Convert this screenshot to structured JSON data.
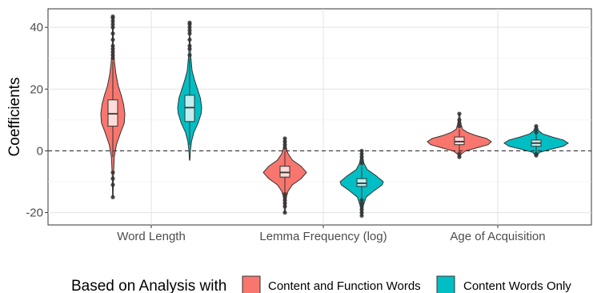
{
  "chart_data": {
    "type": "violin",
    "title": "",
    "xlabel": "",
    "ylabel": "Coefficients",
    "ylim": [
      -24,
      46
    ],
    "yticks": [
      -20,
      0,
      20,
      40
    ],
    "grid": true,
    "reference_line": {
      "y": 0,
      "style": "dashed"
    },
    "categories": [
      "Word Length",
      "Lemma Frequency (log)",
      "Age of Acquisition"
    ],
    "legend": {
      "title": "Based on Analysis with",
      "position": "bottom",
      "entries": [
        "Content and Function Words",
        "Content Words Only"
      ]
    },
    "series": [
      {
        "name": "Content and Function Words",
        "color": "#F8766D",
        "values": [
          {
            "category": "Word Length",
            "min": -15,
            "max": 43.5,
            "q1": 8,
            "median": 12,
            "q3": 16.5,
            "whisker_low": -2,
            "whisker_high": 29,
            "profile": [
              [
                -15,
                0.02
              ],
              [
                -8,
                0.05
              ],
              [
                -2,
                0.12
              ],
              [
                2,
                0.3
              ],
              [
                6,
                0.65
              ],
              [
                9,
                0.95
              ],
              [
                12,
                1
              ],
              [
                15,
                0.9
              ],
              [
                18,
                0.7
              ],
              [
                21,
                0.45
              ],
              [
                25,
                0.25
              ],
              [
                30,
                0.1
              ],
              [
                35,
                0.04
              ],
              [
                43.5,
                0.02
              ]
            ],
            "outliers_high": [
              30,
              31,
              32,
              33,
              34,
              36,
              38,
              40,
              41,
              42,
              43,
              43.5
            ],
            "outliers_low": [
              -7,
              -9,
              -11,
              -15
            ]
          },
          {
            "category": "Lemma Frequency (log)",
            "min": -20,
            "max": 4,
            "q1": -8.5,
            "median": -7,
            "q3": -5,
            "whisker_low": -13.5,
            "whisker_high": 0,
            "profile": [
              [
                -20,
                0.02
              ],
              [
                -15,
                0.06
              ],
              [
                -13,
                0.15
              ],
              [
                -11,
                0.35
              ],
              [
                -9,
                0.75
              ],
              [
                -7,
                1
              ],
              [
                -5,
                0.75
              ],
              [
                -3,
                0.35
              ],
              [
                -1,
                0.15
              ],
              [
                1,
                0.06
              ],
              [
                4,
                0.02
              ]
            ],
            "outliers_high": [
              1,
              2,
              3,
              4
            ],
            "outliers_low": [
              -14,
              -15,
              -16,
              -17,
              -18,
              -20
            ]
          },
          {
            "category": "Age of Acquisition",
            "min": -2,
            "max": 12,
            "q1": 2,
            "median": 3,
            "q3": 4.5,
            "whisker_low": -0.5,
            "whisker_high": 7,
            "profile": [
              [
                -2,
                0.02
              ],
              [
                -1,
                0.06
              ],
              [
                0,
                0.2
              ],
              [
                1,
                0.55
              ],
              [
                2,
                0.9
              ],
              [
                3,
                1
              ],
              [
                4,
                0.85
              ],
              [
                5,
                0.5
              ],
              [
                6,
                0.25
              ],
              [
                7,
                0.1
              ],
              [
                9,
                0.04
              ],
              [
                12,
                0.01
              ]
            ],
            "outliers_high": [
              8,
              9,
              10,
              12
            ],
            "outliers_low": [
              -1,
              -2
            ]
          }
        ]
      },
      {
        "name": "Content Words Only",
        "color": "#00BFC4",
        "values": [
          {
            "category": "Word Length",
            "min": -3,
            "max": 41.5,
            "q1": 9.5,
            "median": 14,
            "q3": 18,
            "whisker_low": 2,
            "whisker_high": 30,
            "profile": [
              [
                -3,
                0.02
              ],
              [
                0,
                0.06
              ],
              [
                3,
                0.15
              ],
              [
                6,
                0.35
              ],
              [
                9,
                0.7
              ],
              [
                12,
                0.95
              ],
              [
                14,
                1
              ],
              [
                17,
                0.9
              ],
              [
                20,
                0.65
              ],
              [
                23,
                0.4
              ],
              [
                26,
                0.2
              ],
              [
                31,
                0.08
              ],
              [
                36,
                0.03
              ],
              [
                41.5,
                0.02
              ]
            ],
            "outliers_high": [
              31,
              33,
              34,
              36,
              38,
              39,
              40,
              41,
              41.5
            ],
            "outliers_low": []
          },
          {
            "category": "Lemma Frequency (log)",
            "min": -21,
            "max": 0,
            "q1": -11.5,
            "median": -10.5,
            "q3": -9,
            "whisker_low": -15.5,
            "whisker_high": -5,
            "profile": [
              [
                -21,
                0.02
              ],
              [
                -18,
                0.06
              ],
              [
                -15,
                0.2
              ],
              [
                -13,
                0.55
              ],
              [
                -11,
                0.95
              ],
              [
                -10,
                1
              ],
              [
                -8,
                0.65
              ],
              [
                -6,
                0.25
              ],
              [
                -4,
                0.1
              ],
              [
                -2,
                0.04
              ],
              [
                0,
                0.01
              ]
            ],
            "outliers_high": [
              -4,
              -3,
              -2,
              -1,
              0
            ],
            "outliers_low": [
              -16,
              -17,
              -18,
              -19,
              -20,
              -21
            ]
          },
          {
            "category": "Age of Acquisition",
            "min": -1.5,
            "max": 8,
            "q1": 1.5,
            "median": 2.5,
            "q3": 3.5,
            "whisker_low": -0.5,
            "whisker_high": 5.5,
            "profile": [
              [
                -1.5,
                0.03
              ],
              [
                -0.5,
                0.1
              ],
              [
                0.5,
                0.45
              ],
              [
                1.5,
                0.85
              ],
              [
                2.5,
                1
              ],
              [
                3.5,
                0.85
              ],
              [
                4.5,
                0.5
              ],
              [
                5.5,
                0.2
              ],
              [
                6.5,
                0.08
              ],
              [
                8,
                0.02
              ]
            ],
            "outliers_high": [
              6,
              7,
              8
            ],
            "outliers_low": [
              -1,
              -1.5
            ]
          }
        ]
      }
    ]
  }
}
